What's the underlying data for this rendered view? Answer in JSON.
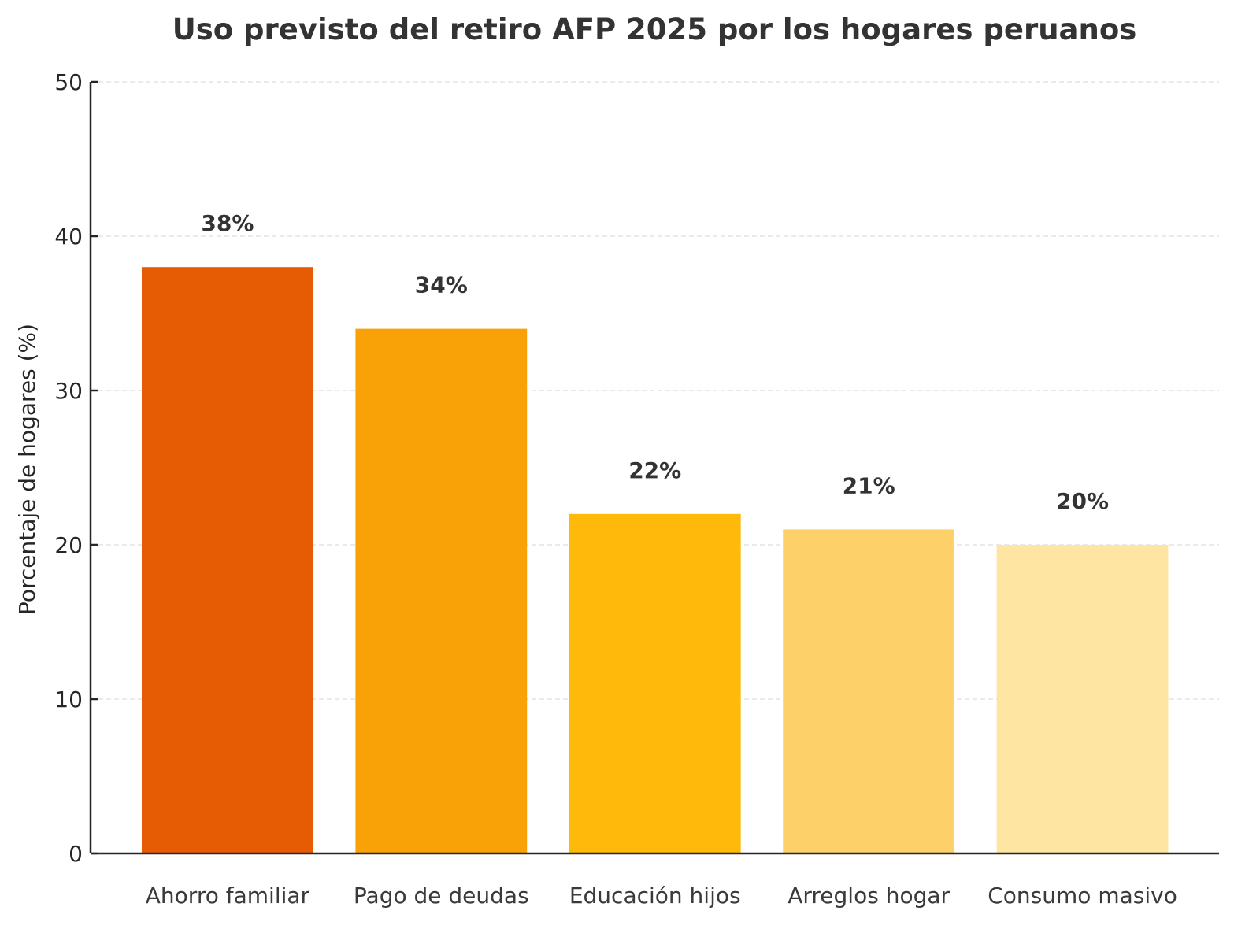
{
  "chart_data": {
    "type": "bar",
    "title": "Uso previsto del retiro AFP 2025 por los hogares peruanos",
    "xlabel": "",
    "ylabel": "Porcentaje de hogares (%)",
    "ylim": [
      0,
      50
    ],
    "yticks": [
      0,
      10,
      20,
      30,
      40,
      50
    ],
    "ytick_labels": [
      "0",
      "10",
      "20",
      "30",
      "40",
      "50"
    ],
    "grid": "y, dashed",
    "categories": [
      "Ahorro familiar",
      "Pago de deudas",
      "Educación hijos",
      "Arreglos hogar",
      "Consumo masivo"
    ],
    "values": [
      38,
      34,
      22,
      21,
      20
    ],
    "data_labels": [
      "38%",
      "34%",
      "22%",
      "21%",
      "20%"
    ],
    "colors": [
      "#e65c05",
      "#f9a208",
      "#feb90a",
      "#fed06a",
      "#fee6a2"
    ]
  }
}
